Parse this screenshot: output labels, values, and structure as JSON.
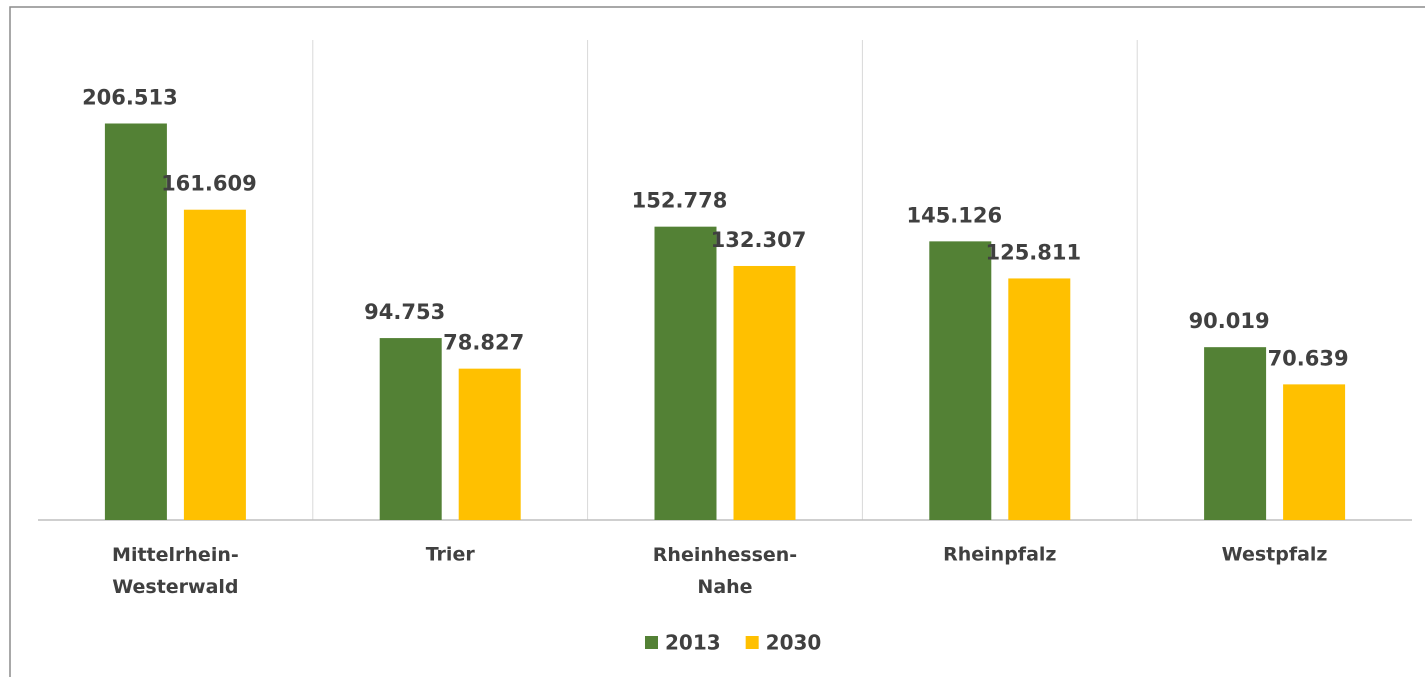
{
  "chart_data": {
    "type": "bar",
    "categories": [
      "Mittelrhein-Westerwald",
      "Trier",
      "Rheinhessen-Nahe",
      "Rheinpfalz",
      "Westpfalz"
    ],
    "series": [
      {
        "name": "2013",
        "color": "#538135",
        "values": [
          206513,
          94753,
          152778,
          145126,
          90019
        ],
        "value_labels": [
          "206.513",
          "94.753",
          "152.778",
          "145.126",
          "90.019"
        ]
      },
      {
        "name": "2030",
        "color": "#ffc000",
        "values": [
          161609,
          78827,
          132307,
          125811,
          70639
        ],
        "value_labels": [
          "161.609",
          "78.827",
          "132.307",
          "125.811",
          "70.639"
        ]
      }
    ],
    "ylim": [
      0,
      250000
    ],
    "legend": "bottom"
  }
}
